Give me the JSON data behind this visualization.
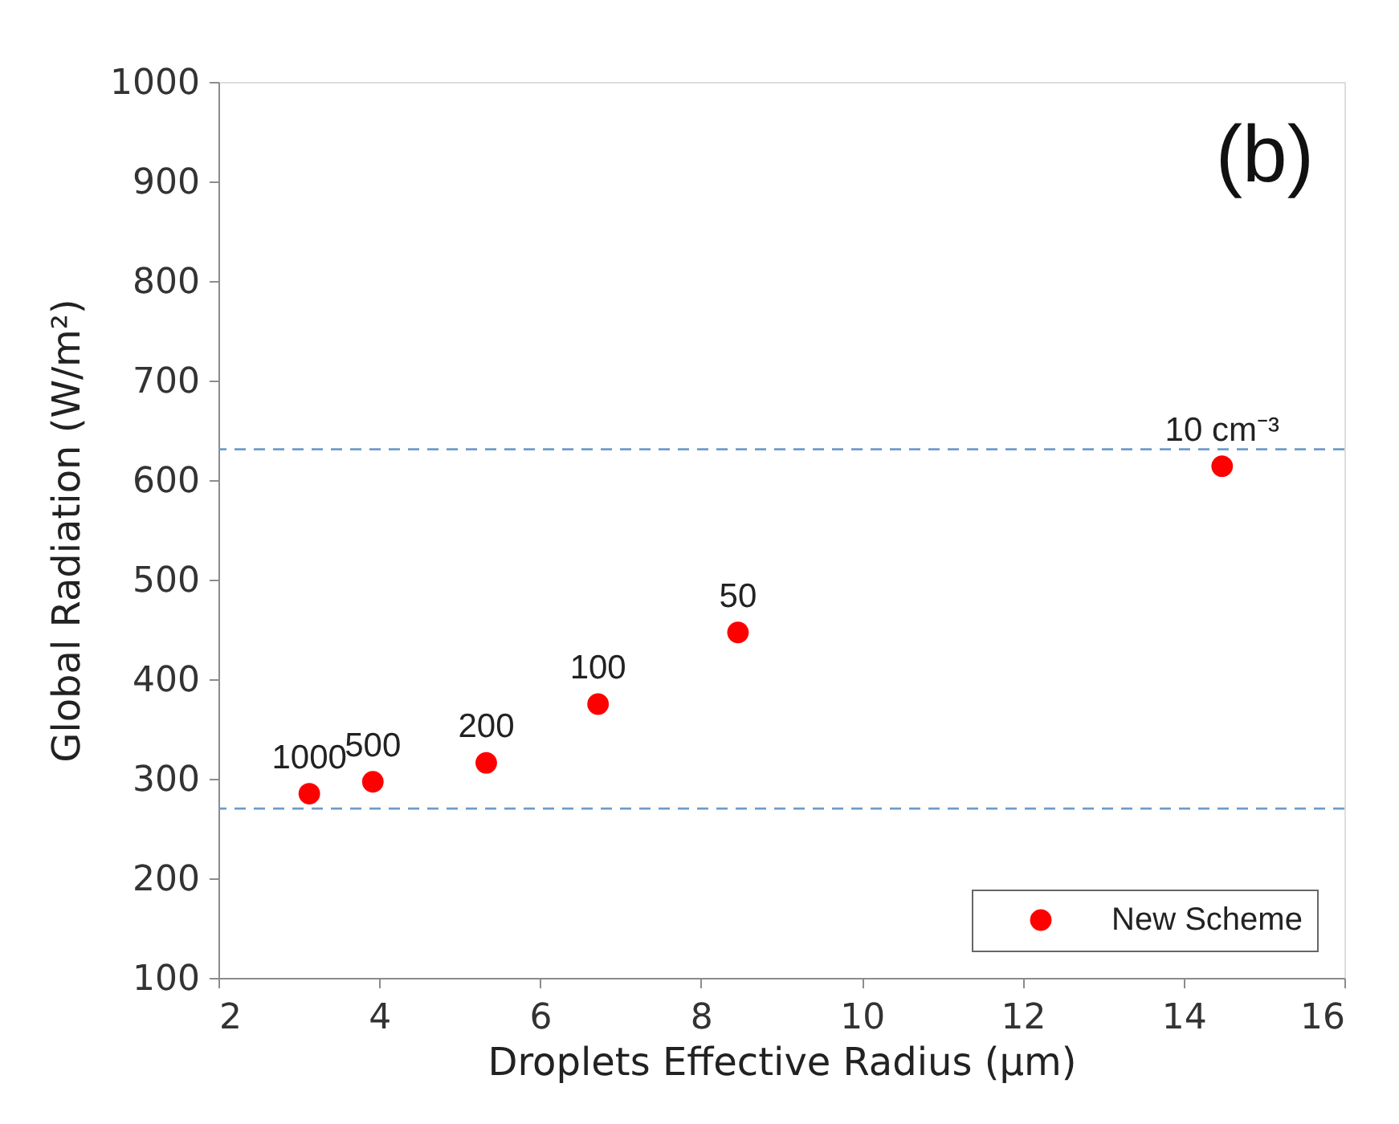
{
  "chart_data": {
    "type": "scatter",
    "xlabel": "Droplets Effective Radius (µm)",
    "ylabel": "Global Radiation (W/m²)",
    "x": [
      3.13,
      3.92,
      5.33,
      6.72,
      8.46,
      14.48
    ],
    "series": [
      {
        "name": "New Scheme",
        "color": "#ff0000",
        "values": [
          285,
          297,
          316,
          375,
          447,
          614
        ]
      }
    ],
    "xlim": [
      2,
      16
    ],
    "xticks": [
      2,
      4,
      6,
      8,
      10,
      12,
      14,
      16
    ],
    "ylim": [
      100,
      1000
    ],
    "yticks": [
      100,
      200,
      300,
      400,
      500,
      600,
      700,
      800,
      900,
      1000
    ],
    "ref_lines": [
      {
        "axis": "y",
        "value": 631,
        "color": "#6f9bc9",
        "line_style": "dashed"
      },
      {
        "axis": "y",
        "value": 270,
        "color": "#6f9bc9",
        "line_style": "dashed"
      }
    ],
    "annotations": [
      "(b)",
      {
        "text": "1000",
        "x": 3.13,
        "y": 285
      },
      {
        "text": "500",
        "x": 3.92,
        "y": 297
      },
      {
        "text": "200",
        "x": 5.33,
        "y": 316
      },
      {
        "text": "100",
        "x": 6.72,
        "y": 375
      },
      {
        "text": "50",
        "x": 8.46,
        "y": 447
      },
      {
        "text": "10 cm⁻³",
        "x": 14.48,
        "y": 614
      }
    ],
    "legend": "bottom right",
    "marker": "circle",
    "grid": false
  }
}
